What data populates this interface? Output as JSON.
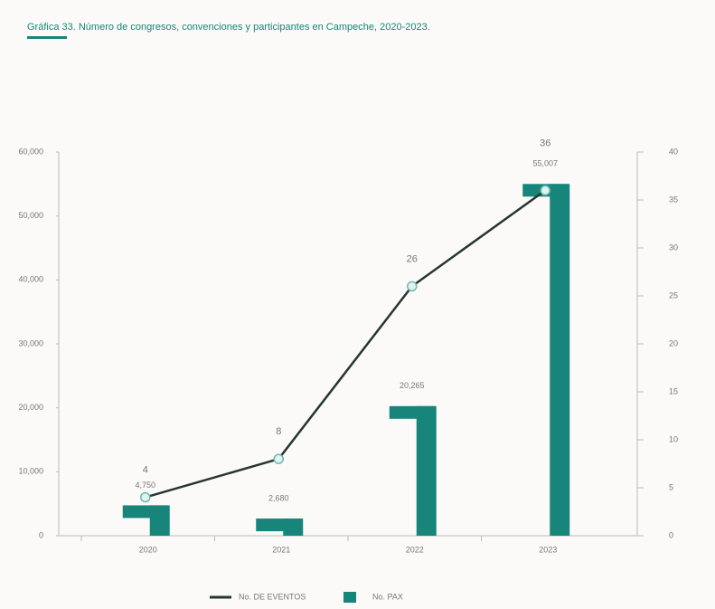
{
  "chart_data": {
    "type": "bar-line",
    "title": "Gráfica 33. Número de congresos, convenciones y participantes en Campeche, 2020-2023.",
    "categories": [
      "2020",
      "2021",
      "2022",
      "2023"
    ],
    "series": [
      {
        "name": "No. PAX",
        "color": "#17857a",
        "values": [
          4750,
          2680,
          20265,
          55007
        ],
        "value_labels": [
          "4,750",
          "2,680",
          "20,265",
          "55,007"
        ]
      },
      {
        "name": "No. DE EVENTOS",
        "color": "#253532",
        "axis": "y2",
        "values": [
          4,
          8,
          26,
          36
        ]
      }
    ],
    "ylim": [
      0,
      60000
    ],
    "yticks": [
      0,
      {
        "value": 10000,
        "label": "10,000"
      },
      {
        "value": 20000,
        "label": "20,000"
      },
      {
        "value": 30000,
        "label": "30,000"
      },
      {
        "value": 40000,
        "label": "40,000"
      },
      {
        "value": 50000,
        "label": "50,000"
      },
      {
        "value": 60000,
        "label": "60,000"
      }
    ],
    "y2lim": [
      0,
      40
    ],
    "y2ticks": [
      0,
      5,
      10,
      15,
      20,
      25,
      30,
      35,
      40
    ]
  }
}
